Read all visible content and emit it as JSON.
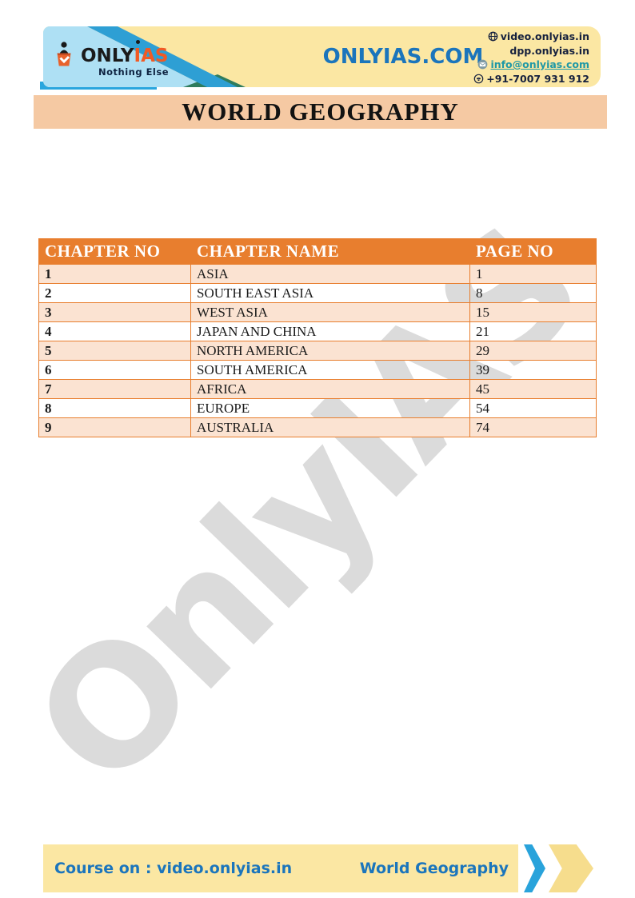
{
  "watermark": {
    "text": "OnlyIAS"
  },
  "header": {
    "logo": {
      "name_primary": "ONLY",
      "name_secondary": "IAS",
      "tagline": "Nothing Else"
    },
    "site_title": "ONLYIAS.COM",
    "contacts": {
      "video_site": "video.onlyias.in",
      "dpp_site": "dpp.onlyias.in",
      "email": "info@onlyias.com",
      "phone": "+91-7007 931 912"
    }
  },
  "title_banner": {
    "title": "WORLD GEOGRAPHY"
  },
  "toc_table": {
    "columns": [
      "CHAPTER NO",
      "CHAPTER NAME",
      "PAGE NO"
    ],
    "rows": [
      {
        "no": "1",
        "name": "ASIA",
        "page": "1"
      },
      {
        "no": "2",
        "name": "SOUTH EAST ASIA",
        "page": "8"
      },
      {
        "no": "3",
        "name": "WEST ASIA",
        "page": "15"
      },
      {
        "no": "4",
        "name": "JAPAN AND CHINA",
        "page": "21"
      },
      {
        "no": "5",
        "name": "NORTH AMERICA",
        "page": "29"
      },
      {
        "no": "6",
        "name": "SOUTH AMERICA",
        "page": "39"
      },
      {
        "no": "7",
        "name": "AFRICA",
        "page": "45"
      },
      {
        "no": "8",
        "name": "EUROPE",
        "page": "54"
      },
      {
        "no": "9",
        "name": "AUSTRALIA",
        "page": "74"
      }
    ]
  },
  "footer": {
    "course_label": "Course on : video.onlyias.in",
    "subject_label": "World Geography"
  },
  "colors": {
    "accent_orange": "#E87E2E",
    "row_peach": "#FBE3D2",
    "banner_peach": "#F5C9A3",
    "cream_band": "#FBE7A3",
    "light_blue": "#AEE0F4",
    "stripe_blue": "#2E9FD4",
    "teal_accent": "#2F7C5E",
    "brand_blue": "#1B75BC",
    "link_teal": "#1E98A6",
    "logo_orange": "#F15A24",
    "watermark_gray": "#DBDBDB"
  }
}
